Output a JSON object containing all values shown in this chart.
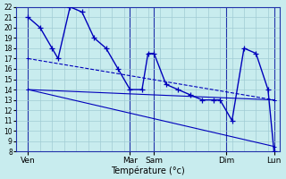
{
  "background_color": "#c8ecee",
  "grid_color": "#a0ccd4",
  "line_color": "#0000bb",
  "xlabel": "Température (°c)",
  "ylim": [
    8,
    22
  ],
  "xlim": [
    0,
    22
  ],
  "ytick_fontsize": 5.5,
  "xtick_fontsize": 6.5,
  "xlabel_fontsize": 7,
  "day_labels": [
    "Ven",
    "Mar",
    "Sam",
    "Dim",
    "Lun"
  ],
  "day_positions": [
    1,
    9.5,
    11.5,
    17.5,
    21.5
  ],
  "vline_positions": [
    1,
    9.5,
    11.5,
    17.5,
    21.5
  ],
  "n_vlines": 22,
  "main_x": [
    1,
    2,
    3,
    3.5,
    4.5,
    5.5,
    6.5,
    7.5,
    8.5,
    9.5,
    10.5,
    11,
    11.5,
    12.5,
    13.5,
    14.5,
    15.5,
    16.5,
    17,
    18,
    19,
    20,
    21,
    21.5
  ],
  "main_y": [
    21,
    20,
    18,
    17,
    22,
    21.5,
    19,
    18,
    16,
    14,
    14,
    17.5,
    17.5,
    14.5,
    14,
    13.5,
    13,
    13,
    13,
    11,
    18,
    17.5,
    14,
    8
  ],
  "line1_x": [
    1,
    21.5
  ],
  "line1_y": [
    17,
    13
  ],
  "line2_x": [
    1,
    21.5
  ],
  "line2_y": [
    14,
    13
  ],
  "line3_x": [
    1,
    21.5
  ],
  "line3_y": [
    14,
    8.5
  ]
}
